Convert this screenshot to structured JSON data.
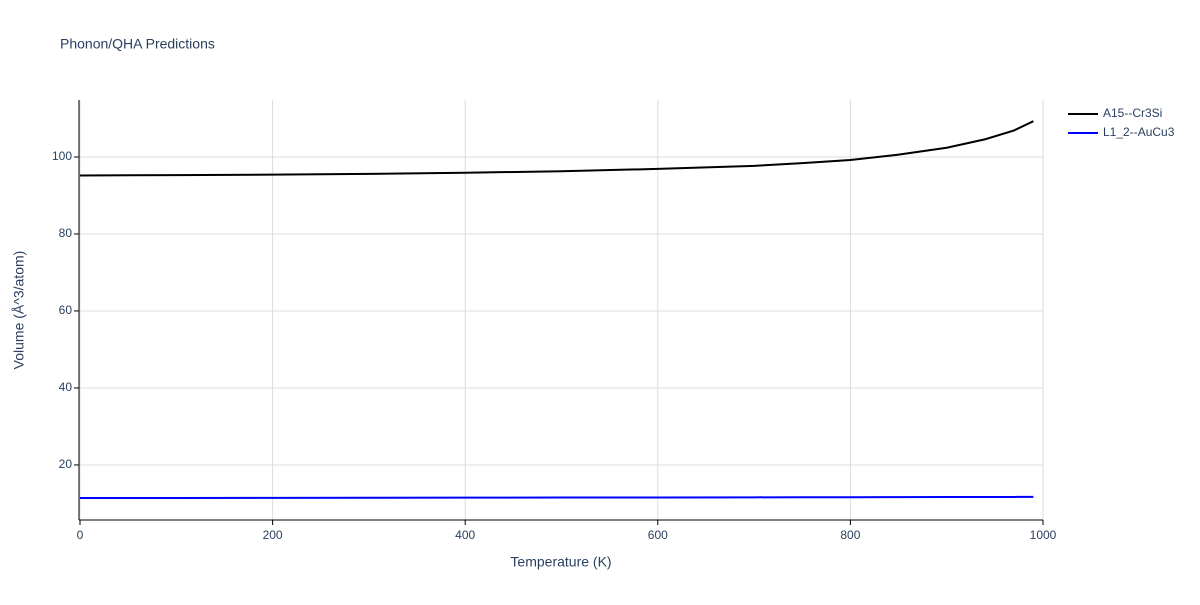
{
  "chart_data": {
    "type": "line",
    "title": "Phonon/QHA Predictions",
    "x_label": "Temperature (K)",
    "y_label": "Volume (Å^3/atom)",
    "x": [
      0,
      100,
      200,
      300,
      400,
      500,
      600,
      700,
      750,
      800,
      850,
      900,
      940,
      970,
      990
    ],
    "series": [
      {
        "name": "A15--Cr3Si",
        "color": "#000000",
        "values": [
          95.2,
          95.3,
          95.4,
          95.6,
          95.9,
          96.3,
          96.9,
          97.7,
          98.4,
          99.2,
          100.6,
          102.4,
          104.6,
          106.9,
          109.3
        ]
      },
      {
        "name": "L1_2--AuCu3",
        "color": "#0000ff",
        "values": [
          11.4,
          11.42,
          11.45,
          11.48,
          11.5,
          11.53,
          11.56,
          11.59,
          11.61,
          11.62,
          11.64,
          11.66,
          11.68,
          11.69,
          11.7
        ]
      }
    ],
    "xlim": [
      0,
      1000
    ],
    "xticks": [
      0,
      200,
      400,
      600,
      800,
      1000
    ],
    "ylim": [
      5.7,
      114.8
    ],
    "yticks": [
      20,
      40,
      60,
      80,
      100
    ],
    "grid": true,
    "legend": "top-right"
  }
}
